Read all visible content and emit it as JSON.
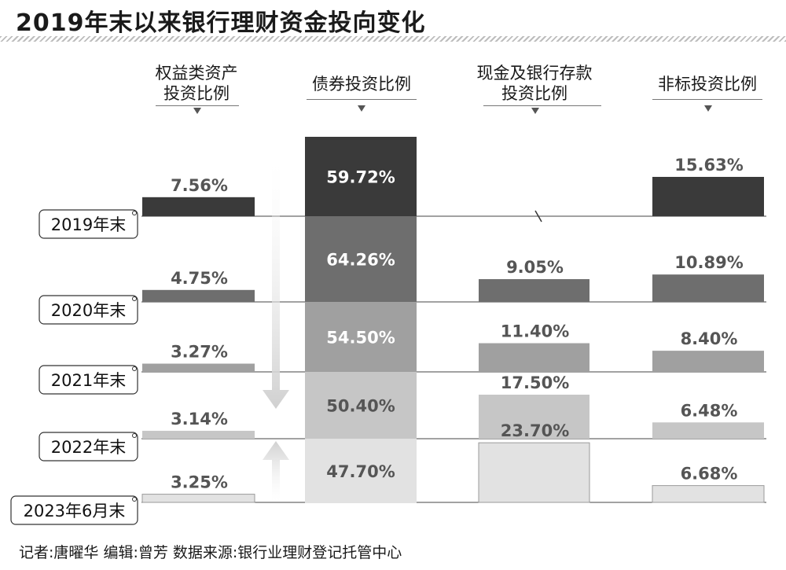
{
  "title": "2019年末以来银行理财资金投向变化",
  "headers": [
    {
      "lines": [
        "权益类资产",
        "投资比例"
      ]
    },
    {
      "lines": [
        "债券投资比例"
      ]
    },
    {
      "lines": [
        "现金及银行存款",
        "投资比例"
      ]
    },
    {
      "lines": [
        "非标投资比例"
      ]
    }
  ],
  "footer": "记者:唐曜华   编辑:曾芳   数据来源:银行业理财登记托管中心",
  "colors": {
    "2019年末": "#3a3a3a",
    "2020年末": "#6e6e6e",
    "2021年末": "#a0a0a0",
    "2022年末": "#c6c6c6",
    "2023年6月末": "#e2e2e2"
  },
  "chart_data": {
    "type": "bar",
    "categories": [
      "2019年末",
      "2020年末",
      "2021年末",
      "2022年末",
      "2023年6月末"
    ],
    "series": [
      {
        "name": "权益类资产投资比例",
        "values": [
          7.56,
          4.75,
          3.27,
          3.14,
          3.25
        ],
        "labels": [
          "7.56%",
          "4.75%",
          "3.27%",
          "3.14%",
          "3.25%"
        ]
      },
      {
        "name": "债券投资比例",
        "values": [
          59.72,
          64.26,
          54.5,
          50.4,
          47.7
        ],
        "labels": [
          "59.72%",
          "64.26%",
          "54.50%",
          "50.40%",
          "47.70%"
        ]
      },
      {
        "name": "现金及银行存款投资比例",
        "values": [
          null,
          9.05,
          11.4,
          17.5,
          23.7
        ],
        "labels": [
          "/",
          "9.05%",
          "11.40%",
          "17.50%",
          "23.70%"
        ]
      },
      {
        "name": "非标投资比例",
        "values": [
          15.63,
          10.89,
          8.4,
          6.48,
          6.68
        ],
        "labels": [
          "15.63%",
          "10.89%",
          "8.40%",
          "6.48%",
          "6.68%"
        ]
      }
    ]
  }
}
